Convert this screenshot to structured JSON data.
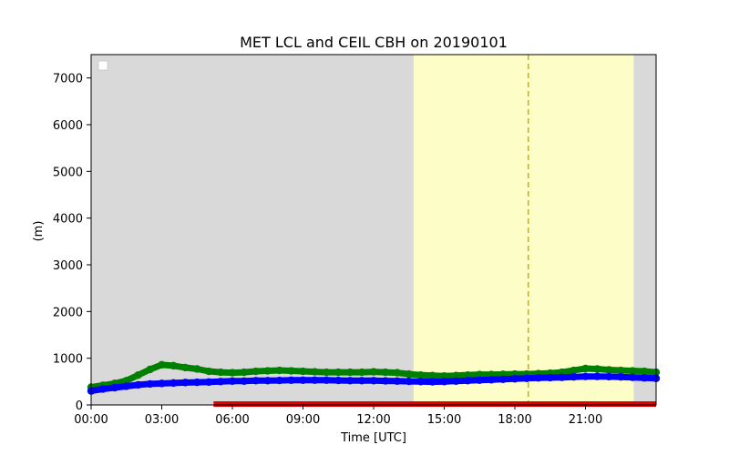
{
  "chart_data": {
    "type": "scatter",
    "title": "MET LCL and CEIL CBH on 20190101",
    "xlabel": "Time [UTC]",
    "ylabel": "(m)",
    "xlim_hours": [
      0,
      24
    ],
    "ylim": [
      0,
      7500
    ],
    "x_ticks": [
      {
        "hour": 0,
        "label": "00:00"
      },
      {
        "hour": 3,
        "label": "03:00"
      },
      {
        "hour": 6,
        "label": "06:00"
      },
      {
        "hour": 9,
        "label": "09:00"
      },
      {
        "hour": 12,
        "label": "12:00"
      },
      {
        "hour": 15,
        "label": "15:00"
      },
      {
        "hour": 18,
        "label": "18:00"
      },
      {
        "hour": 21,
        "label": "21:00"
      }
    ],
    "y_ticks": [
      0,
      1000,
      2000,
      3000,
      4000,
      5000,
      6000,
      7000
    ],
    "grid": false,
    "legend": {
      "placement": "upper-left",
      "entries": []
    },
    "background_spans": [
      {
        "from": 0,
        "to": 13.7,
        "color": "#d9d9d9"
      },
      {
        "from": 13.7,
        "to": 23.05,
        "color": "#fdfdc8"
      },
      {
        "from": 23.05,
        "to": 24,
        "color": "#d9d9d9"
      }
    ],
    "vertical_lines": [
      {
        "x": 18.57,
        "color": "#c8b400",
        "style": "dashed"
      }
    ],
    "series": [
      {
        "color": "#008000",
        "x": [
          0,
          0.5,
          1,
          1.5,
          2,
          2.5,
          3,
          3.5,
          4,
          4.5,
          5,
          5.5,
          6,
          6.5,
          7,
          7.5,
          8,
          8.5,
          9,
          9.5,
          10,
          10.5,
          11,
          11.5,
          12,
          12.5,
          13,
          13.5,
          14,
          14.5,
          15,
          15.5,
          16,
          16.5,
          17,
          17.5,
          18,
          18.5,
          19,
          19.5,
          20,
          20.5,
          21,
          21.5,
          22,
          22.5,
          23,
          23.5,
          24
        ],
        "y": [
          380,
          420,
          460,
          520,
          640,
          760,
          860,
          840,
          800,
          770,
          720,
          700,
          690,
          700,
          720,
          730,
          740,
          730,
          720,
          710,
          700,
          700,
          700,
          700,
          710,
          700,
          690,
          660,
          640,
          630,
          620,
          630,
          640,
          650,
          650,
          655,
          660,
          660,
          670,
          680,
          700,
          740,
          780,
          770,
          750,
          740,
          730,
          720,
          700
        ]
      },
      {
        "color": "#0000ff",
        "x": [
          0,
          0.5,
          1,
          1.5,
          2,
          2.5,
          3,
          3.5,
          4,
          4.5,
          5,
          5.5,
          6,
          6.5,
          7,
          7.5,
          8,
          8.5,
          9,
          9.5,
          10,
          10.5,
          11,
          11.5,
          12,
          12.5,
          13,
          13.5,
          14,
          14.5,
          15,
          15.5,
          16,
          16.5,
          17,
          17.5,
          18,
          18.5,
          19,
          19.5,
          20,
          20.5,
          21,
          21.5,
          22,
          22.5,
          23,
          23.5,
          24
        ],
        "y": [
          300,
          340,
          370,
          400,
          430,
          450,
          460,
          470,
          480,
          485,
          490,
          500,
          510,
          510,
          520,
          520,
          525,
          530,
          530,
          530,
          530,
          525,
          520,
          520,
          520,
          515,
          510,
          505,
          500,
          495,
          500,
          510,
          520,
          530,
          540,
          550,
          560,
          570,
          580,
          585,
          590,
          600,
          610,
          610,
          605,
          600,
          590,
          580,
          570
        ]
      }
    ],
    "baseline_bar": {
      "from": 5.2,
      "to": 24,
      "y": 0,
      "color": "#e00000"
    }
  }
}
